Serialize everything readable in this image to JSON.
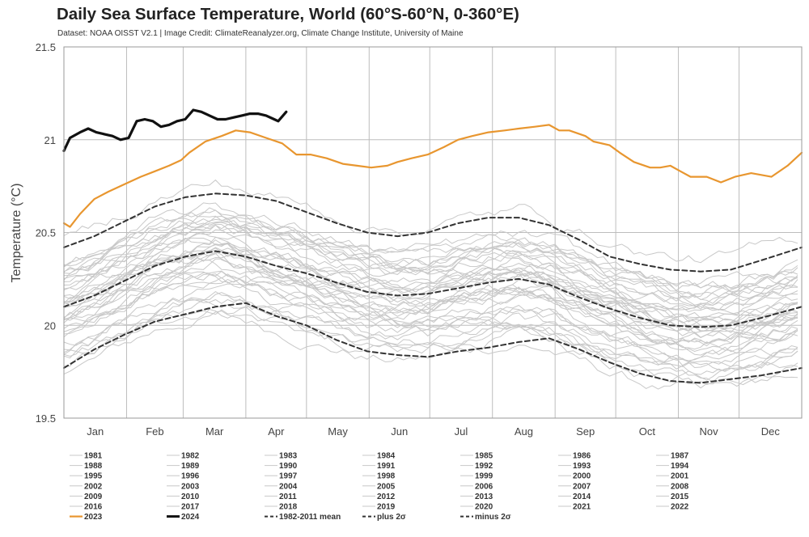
{
  "chart_data": {
    "type": "line",
    "title": "Daily Sea Surface Temperature, World (60°S-60°N, 0-360°E)",
    "subtitle": "Dataset: NOAA OISST V2.1 | Image Credit: ClimateReanalyzer.org, Climate Change Institute, University of Maine",
    "xlabel": "",
    "ylabel": "Temperature (°C)",
    "ylim": [
      19.5,
      21.5
    ],
    "yticks": [
      19.5,
      20,
      20.5,
      21,
      21.5
    ],
    "ytick_labels": [
      "19.5",
      "20",
      "20.5",
      "21",
      "21.5"
    ],
    "xlim": [
      0,
      365
    ],
    "month_boundaries": [
      31,
      59,
      90,
      120,
      151,
      181,
      212,
      243,
      273,
      304,
      334
    ],
    "month_label_positions": [
      15.5,
      45,
      74.5,
      105,
      135.5,
      166,
      196.5,
      227.5,
      258,
      288.5,
      319,
      349.5
    ],
    "month_labels": [
      "Jan",
      "Feb",
      "Mar",
      "Apr",
      "May",
      "Jun",
      "Jul",
      "Aug",
      "Sep",
      "Oct",
      "Nov",
      "Dec"
    ],
    "grid": true,
    "background_years": {
      "years": [
        1981,
        1982,
        1983,
        1984,
        1985,
        1986,
        1987,
        1988,
        1989,
        1990,
        1991,
        1992,
        1993,
        1994,
        1995,
        1996,
        1997,
        1998,
        1999,
        2000,
        2001,
        2002,
        2003,
        2004,
        2005,
        2006,
        2007,
        2008,
        2009,
        2010,
        2011,
        2012,
        2013,
        2014,
        2015,
        2016,
        2017,
        2018,
        2019,
        2020,
        2021,
        2022
      ],
      "color": "#c8c8c8"
    },
    "series": [
      {
        "name": "2023",
        "color": "#e8962f",
        "style": "solid",
        "x": [
          0,
          3,
          8,
          15,
          22,
          30,
          38,
          45,
          52,
          58,
          62,
          70,
          78,
          85,
          92,
          100,
          108,
          115,
          122,
          130,
          138,
          145,
          152,
          160,
          165,
          172,
          180,
          188,
          195,
          202,
          210,
          218,
          225,
          233,
          240,
          245,
          250,
          258,
          262,
          270,
          275,
          282,
          290,
          295,
          300,
          305,
          310,
          318,
          325,
          332,
          340,
          350,
          358,
          365
        ],
        "y": [
          20.55,
          20.53,
          20.6,
          20.68,
          20.72,
          20.76,
          20.8,
          20.83,
          20.86,
          20.89,
          20.93,
          20.99,
          21.02,
          21.05,
          21.04,
          21.01,
          20.98,
          20.92,
          20.92,
          20.9,
          20.87,
          20.86,
          20.85,
          20.86,
          20.88,
          20.9,
          20.92,
          20.96,
          21.0,
          21.02,
          21.04,
          21.05,
          21.06,
          21.07,
          21.08,
          21.05,
          21.05,
          21.02,
          20.99,
          20.97,
          20.93,
          20.88,
          20.85,
          20.85,
          20.86,
          20.83,
          20.8,
          20.8,
          20.77,
          20.8,
          20.82,
          20.8,
          20.86,
          20.93
        ]
      },
      {
        "name": "2024",
        "color": "#111111",
        "style": "solid",
        "x": [
          0,
          3,
          8,
          12,
          16,
          20,
          24,
          28,
          32,
          36,
          40,
          44,
          48,
          52,
          56,
          60,
          64,
          68,
          72,
          76,
          80,
          84,
          88,
          92,
          96,
          100,
          104,
          106,
          110
        ],
        "y": [
          20.94,
          21.01,
          21.04,
          21.06,
          21.04,
          21.03,
          21.02,
          21.0,
          21.01,
          21.1,
          21.11,
          21.1,
          21.07,
          21.08,
          21.1,
          21.11,
          21.16,
          21.15,
          21.13,
          21.11,
          21.11,
          21.12,
          21.13,
          21.14,
          21.14,
          21.13,
          21.11,
          21.1,
          21.15
        ]
      },
      {
        "name": "1982-2011 mean",
        "color": "#333333",
        "style": "dashed",
        "x": [
          0,
          15,
          30,
          45,
          60,
          75,
          90,
          105,
          120,
          135,
          150,
          165,
          180,
          195,
          210,
          225,
          240,
          255,
          270,
          285,
          300,
          315,
          330,
          345,
          365
        ],
        "y": [
          20.1,
          20.16,
          20.24,
          20.32,
          20.37,
          20.4,
          20.37,
          20.32,
          20.28,
          20.23,
          20.18,
          20.16,
          20.17,
          20.2,
          20.23,
          20.25,
          20.22,
          20.15,
          20.09,
          20.04,
          20.0,
          19.99,
          20.0,
          20.04,
          20.1
        ]
      },
      {
        "name": "plus 2σ",
        "color": "#333333",
        "style": "dashed",
        "x": [
          0,
          15,
          30,
          45,
          60,
          75,
          90,
          105,
          120,
          135,
          150,
          165,
          180,
          195,
          210,
          225,
          240,
          255,
          270,
          285,
          300,
          315,
          330,
          345,
          365
        ],
        "y": [
          20.42,
          20.48,
          20.56,
          20.64,
          20.69,
          20.71,
          20.7,
          20.67,
          20.61,
          20.55,
          20.5,
          20.48,
          20.5,
          20.55,
          20.58,
          20.58,
          20.54,
          20.46,
          20.37,
          20.33,
          20.3,
          20.29,
          20.3,
          20.35,
          20.42
        ]
      },
      {
        "name": "minus 2σ",
        "color": "#333333",
        "style": "dashed",
        "x": [
          0,
          15,
          30,
          45,
          60,
          75,
          90,
          105,
          120,
          135,
          150,
          165,
          180,
          195,
          210,
          225,
          240,
          255,
          270,
          285,
          300,
          315,
          330,
          345,
          365
        ],
        "y": [
          19.77,
          19.87,
          19.95,
          20.02,
          20.06,
          20.1,
          20.12,
          20.05,
          20.0,
          19.92,
          19.86,
          19.84,
          19.83,
          19.86,
          19.88,
          19.91,
          19.93,
          19.87,
          19.8,
          19.74,
          19.7,
          19.69,
          19.71,
          19.73,
          19.77
        ]
      }
    ],
    "legend": {
      "placement": "bottom",
      "rows": [
        [
          "1981",
          "1982",
          "1983",
          "1984",
          "1985",
          "1986",
          "1987"
        ],
        [
          "1988",
          "1989",
          "1990",
          "1991",
          "1992",
          "1993",
          "1994"
        ],
        [
          "1995",
          "1996",
          "1997",
          "1998",
          "1999",
          "2000",
          "2001"
        ],
        [
          "2002",
          "2003",
          "2004",
          "2005",
          "2006",
          "2007",
          "2008"
        ],
        [
          "2009",
          "2010",
          "2011",
          "2012",
          "2013",
          "2014",
          "2015"
        ],
        [
          "2016",
          "2017",
          "2018",
          "2019",
          "2020",
          "2021",
          "2022"
        ],
        [
          "2023",
          "2024",
          "1982-2011 mean",
          "plus 2σ",
          "minus 2σ"
        ]
      ]
    }
  }
}
